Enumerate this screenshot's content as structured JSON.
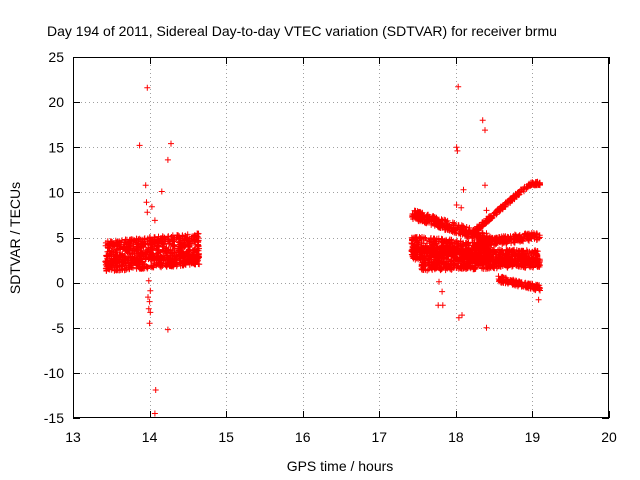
{
  "chart_data": {
    "type": "scatter",
    "title": "Day 194 of 2011, Sidereal Day-to-day VTEC variation (SDTVAR) for receiver brmu",
    "xlabel": "GPS time / hours",
    "ylabel": "SDTVAR / TECUs",
    "xlim": [
      13,
      20
    ],
    "ylim": [
      -15,
      25
    ],
    "x_ticks": [
      13,
      14,
      15,
      16,
      17,
      18,
      19,
      20
    ],
    "y_ticks": [
      -15,
      -10,
      -5,
      0,
      5,
      10,
      15,
      20,
      25
    ],
    "grid": true,
    "marker": "+",
    "series_color": "#ff0000",
    "series": [
      {
        "name": "SDTVAR",
        "dense_bands": [
          {
            "x_start": 13.42,
            "x_end": 14.65,
            "y_center_start": 3.4,
            "y_center_end": 4.3,
            "spread": 2.4
          },
          {
            "x_start": 13.42,
            "x_end": 14.65,
            "y_center_start": 1.8,
            "y_center_end": 2.6,
            "spread": 1.2
          },
          {
            "x_start": 17.42,
            "x_end": 18.45,
            "y_center_start": 7.6,
            "y_center_end": 4.8,
            "spread": 1.1
          },
          {
            "x_start": 17.42,
            "x_end": 18.45,
            "y_center_start": 4.2,
            "y_center_end": 3.5,
            "spread": 1.9
          },
          {
            "x_start": 17.42,
            "x_end": 19.08,
            "y_center_start": 3.2,
            "y_center_end": 2.9,
            "spread": 1.4
          },
          {
            "x_start": 17.55,
            "x_end": 19.1,
            "y_center_start": 1.8,
            "y_center_end": 2.2,
            "spread": 1.0
          },
          {
            "x_start": 18.3,
            "x_end": 19.1,
            "y_center_start": 4.4,
            "y_center_end": 5.2,
            "spread": 0.9
          },
          {
            "x_start": 18.2,
            "x_end": 18.95,
            "y_center_start": 5.4,
            "y_center_end": 10.8,
            "spread": 0.5
          },
          {
            "x_start": 18.95,
            "x_end": 19.1,
            "y_center_start": 10.9,
            "y_center_end": 11.0,
            "spread": 0.4
          },
          {
            "x_start": 18.55,
            "x_end": 19.1,
            "y_center_start": 0.4,
            "y_center_end": -0.6,
            "spread": 0.7
          }
        ],
        "points": [
          [
            13.97,
            21.6
          ],
          [
            13.87,
            15.2
          ],
          [
            14.28,
            15.4
          ],
          [
            14.24,
            13.6
          ],
          [
            13.95,
            10.8
          ],
          [
            14.16,
            10.1
          ],
          [
            13.96,
            8.9
          ],
          [
            14.03,
            8.4
          ],
          [
            13.97,
            7.8
          ],
          [
            14.07,
            6.9
          ],
          [
            13.99,
            0.2
          ],
          [
            14.01,
            -0.9
          ],
          [
            13.98,
            -1.6
          ],
          [
            14.0,
            -2.1
          ],
          [
            13.99,
            -2.9
          ],
          [
            14.01,
            -3.3
          ],
          [
            14.0,
            -4.5
          ],
          [
            14.24,
            -5.2
          ],
          [
            14.08,
            -11.9
          ],
          [
            14.07,
            -14.5
          ],
          [
            18.03,
            21.7
          ],
          [
            18.35,
            18.0
          ],
          [
            18.38,
            16.9
          ],
          [
            18.01,
            15.0
          ],
          [
            18.02,
            14.6
          ],
          [
            18.38,
            10.8
          ],
          [
            18.1,
            10.3
          ],
          [
            18.01,
            8.6
          ],
          [
            18.07,
            8.3
          ],
          [
            18.4,
            8.0
          ],
          [
            17.78,
            0.1
          ],
          [
            17.82,
            -1.0
          ],
          [
            17.77,
            -2.5
          ],
          [
            17.83,
            -2.5
          ],
          [
            18.04,
            -3.9
          ],
          [
            18.08,
            -3.6
          ],
          [
            18.4,
            -5.0
          ],
          [
            19.08,
            -1.9
          ]
        ]
      }
    ]
  }
}
